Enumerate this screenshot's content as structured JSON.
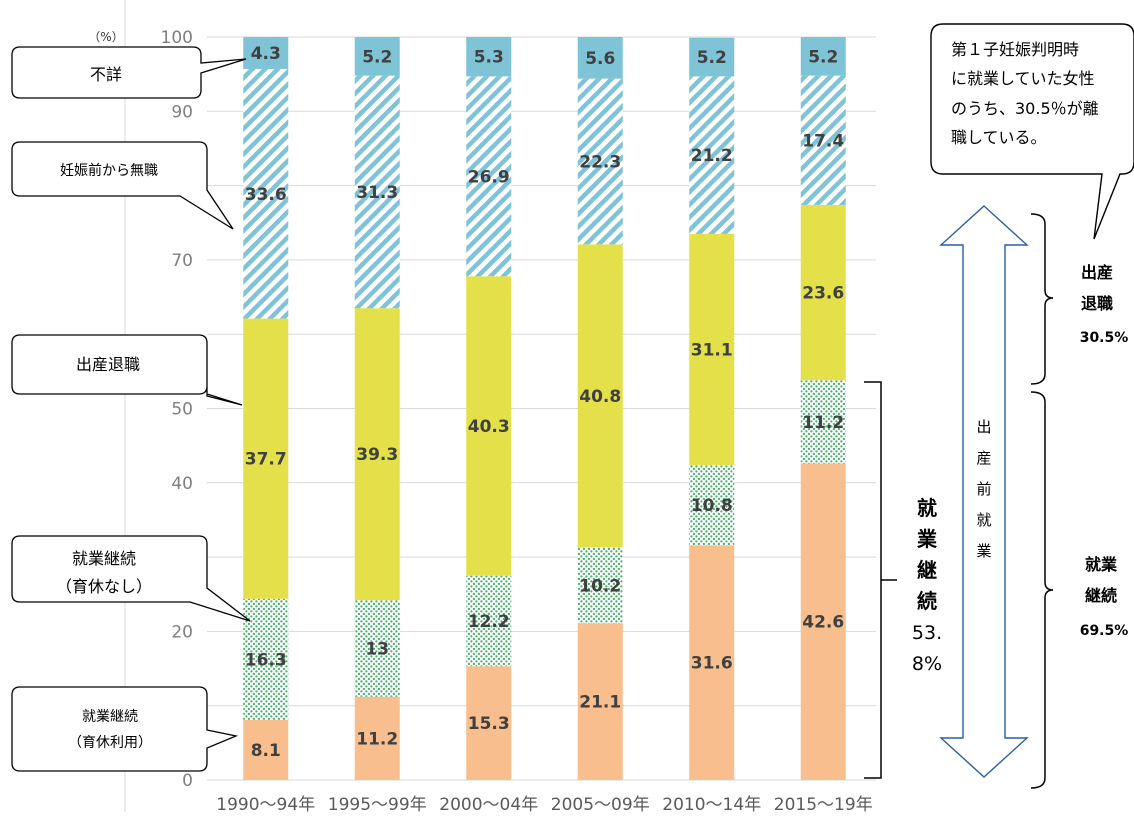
{
  "chart_data": {
    "type": "bar",
    "stacked": true,
    "categories": [
      "1990〜94年",
      "1995〜99年",
      "2000〜04年",
      "2005〜09年",
      "2010〜14年",
      "2015〜19年"
    ],
    "ylim": [
      0,
      100
    ],
    "yticks": [
      0,
      10,
      20,
      30,
      40,
      50,
      60,
      70,
      80,
      90,
      100
    ],
    "ytick_labels": [
      "0",
      "",
      "20",
      "",
      "40",
      "50",
      "",
      "70",
      "",
      "90",
      "100"
    ],
    "y_unit_label": "（%）",
    "grid": true,
    "series": [
      {
        "name": "就業継続（育休利用）",
        "values": [
          8.1,
          11.2,
          15.3,
          21.1,
          31.6,
          42.6
        ],
        "labels": [
          "8.1",
          "11.2",
          "15.3",
          "21.1",
          "31.6",
          "42.6"
        ],
        "color": "#f8be8e",
        "pattern": "solid"
      },
      {
        "name": "就業継続（育休なし）",
        "values": [
          16.3,
          13,
          12.2,
          10.2,
          10.8,
          11.2
        ],
        "labels": [
          "16.3",
          "13",
          "12.2",
          "10.2",
          "10.8",
          "11.2"
        ],
        "color": "#4caf70",
        "pattern": "dots"
      },
      {
        "name": "出産退職",
        "values": [
          37.7,
          39.3,
          40.3,
          40.8,
          31.1,
          23.6
        ],
        "labels": [
          "37.7",
          "39.3",
          "40.3",
          "40.8",
          "31.1",
          "23.6"
        ],
        "color": "#e3e04a",
        "pattern": "solid"
      },
      {
        "name": "妊娠前から無職",
        "values": [
          33.6,
          31.3,
          26.9,
          22.3,
          21.2,
          17.4
        ],
        "labels": [
          "33.6",
          "31.3",
          "26.9",
          "22.3",
          "21.2",
          "17.4"
        ],
        "color": "#7ec3d6",
        "pattern": "stripes"
      },
      {
        "name": "不詳",
        "values": [
          4.3,
          5.2,
          5.3,
          5.6,
          5.2,
          5.2
        ],
        "labels": [
          "4.3",
          "5.2",
          "5.3",
          "5.6",
          "5.2",
          "5.2"
        ],
        "color": "#7ec3d6",
        "pattern": "solid"
      }
    ]
  },
  "callouts": {
    "fusho": "不詳",
    "mushoku": "妊娠前から無職",
    "taishoku": "出産退職",
    "nashi_line1": "就業継続",
    "nashi_line2": "（育休なし）",
    "riyou_line1": "就業継続",
    "riyou_line2": "（育休利用）",
    "top_right_lines": [
      "第１子妊娠判明時",
      "に就業していた女性",
      "のうち、30.5％が離",
      "職している。"
    ]
  },
  "annotations": {
    "continue_total_chars": [
      "就",
      "業",
      "継",
      "続",
      "53.",
      "8%"
    ],
    "arrow_chars": [
      "出",
      "産",
      "前",
      "就",
      "業"
    ],
    "right_taishoku_lines": [
      "出産",
      "退職",
      "30.5%"
    ],
    "right_keizoku_lines": [
      "就業",
      "継続",
      "69.5%"
    ]
  },
  "colors": {
    "grid": "#d9d9d9",
    "arrow_stroke": "#2e5f9c",
    "text": "#000000"
  }
}
